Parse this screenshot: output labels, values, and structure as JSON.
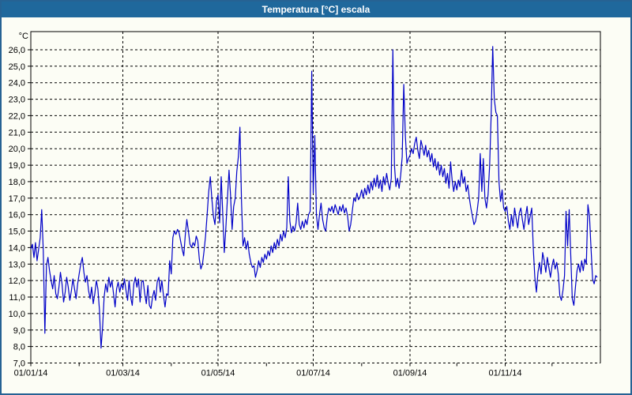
{
  "window": {
    "title": "Temperatura [°C] escala",
    "titlebar_color": "#1f689c",
    "border_color": "#266293",
    "background_color": "#fcfdf5"
  },
  "chart_data": {
    "type": "line",
    "title": "Temperatura [°C] escala",
    "xlabel": "",
    "ylabel": "°C",
    "legend": "none",
    "grid": "dashed",
    "line_color": "#0000c8",
    "ylim": [
      7.0,
      27.1
    ],
    "xlim": [
      0,
      365
    ],
    "y_ticks": [
      {
        "value": 26,
        "label": "26,0"
      },
      {
        "value": 25,
        "label": "25,0"
      },
      {
        "value": 24,
        "label": "24,0"
      },
      {
        "value": 23,
        "label": "23,0"
      },
      {
        "value": 22,
        "label": "22,0"
      },
      {
        "value": 21,
        "label": "21,0"
      },
      {
        "value": 20,
        "label": "20,0"
      },
      {
        "value": 19,
        "label": "19,0"
      },
      {
        "value": 18,
        "label": "18,0"
      },
      {
        "value": 17,
        "label": "17,0"
      },
      {
        "value": 16,
        "label": "16,0"
      },
      {
        "value": 15,
        "label": "15,0"
      },
      {
        "value": 14,
        "label": "14,0"
      },
      {
        "value": 13,
        "label": "13,0"
      },
      {
        "value": 12,
        "label": "12,0"
      },
      {
        "value": 11,
        "label": "11,0"
      },
      {
        "value": 10,
        "label": "10,0"
      },
      {
        "value": 9,
        "label": "9,0"
      },
      {
        "value": 8,
        "label": "8,0"
      },
      {
        "value": 7,
        "label": "7,0"
      }
    ],
    "x_ticks": [
      {
        "day": 0,
        "label": "01/01/14"
      },
      {
        "day": 59,
        "label": "01/03/14"
      },
      {
        "day": 120,
        "label": "01/05/14"
      },
      {
        "day": 181,
        "label": "01/07/14"
      },
      {
        "day": 243,
        "label": "01/09/14"
      },
      {
        "day": 304,
        "label": "01/11/14"
      }
    ],
    "x_minor_tick_days": [
      0,
      31,
      59,
      90,
      120,
      151,
      181,
      212,
      243,
      273,
      304,
      334
    ],
    "series": [
      {
        "name": "Temperatura",
        "start_day": 0,
        "step_days": 1,
        "values": [
          13.9,
          14.2,
          13.4,
          14.3,
          13.2,
          13.9,
          14.6,
          16.3,
          13.8,
          8.8,
          12.9,
          13.4,
          12.6,
          12.0,
          11.5,
          12.3,
          11.2,
          10.9,
          11.6,
          12.5,
          11.8,
          10.7,
          11.3,
          12.2,
          11.6,
          10.8,
          11.4,
          12.1,
          11.5,
          10.9,
          11.8,
          12.4,
          13.0,
          13.4,
          12.5,
          11.9,
          12.3,
          11.4,
          10.9,
          11.6,
          10.6,
          11.2,
          12.0,
          11.5,
          10.2,
          7.9,
          9.2,
          11.0,
          11.8,
          11.3,
          12.2,
          11.6,
          12.0,
          11.2,
          10.4,
          11.5,
          11.9,
          11.3,
          11.8,
          11.5,
          12.1,
          11.4,
          10.8,
          12.0,
          11.0,
          10.5,
          11.8,
          12.2,
          11.6,
          12.1,
          10.7,
          11.9,
          12.0,
          11.2,
          10.6,
          11.7,
          10.5,
          10.3,
          11.0,
          11.4,
          10.8,
          11.9,
          12.2,
          11.3,
          12.0,
          11.1,
          10.4,
          11.2,
          11.1,
          13.2,
          12.4,
          14.6,
          15.0,
          14.8,
          15.1,
          14.9,
          14.4,
          13.9,
          13.5,
          14.8,
          15.7,
          15.0,
          14.2,
          14.0,
          14.3,
          14.1,
          14.7,
          14.4,
          13.3,
          12.7,
          13.0,
          13.8,
          14.7,
          16.0,
          17.4,
          18.3,
          17.0,
          15.9,
          15.4,
          16.8,
          17.2,
          15.5,
          18.3,
          16.0,
          13.7,
          15.2,
          17.0,
          18.7,
          17.2,
          15.1,
          16.5,
          17.0,
          18.6,
          19.5,
          21.3,
          16.8,
          14.1,
          14.6,
          13.9,
          14.4,
          13.6,
          13.1,
          12.8,
          12.9,
          12.2,
          12.6,
          13.2,
          12.8,
          13.4,
          13.1,
          13.6,
          13.3,
          13.8,
          13.5,
          14.1,
          13.7,
          14.3,
          13.9,
          14.5,
          14.1,
          14.8,
          14.4,
          15.0,
          14.6,
          15.2,
          18.3,
          15.6,
          14.9,
          15.3,
          15.0,
          15.5,
          16.7,
          15.4,
          15.1,
          15.6,
          15.2,
          15.7,
          15.4,
          16.0,
          16.2,
          24.7,
          17.3,
          20.8,
          16.0,
          15.1,
          16.0,
          16.7,
          15.7,
          15.2,
          15.0,
          15.9,
          16.4,
          16.2,
          16.5,
          16.1,
          16.6,
          16.3,
          16.0,
          16.5,
          16.2,
          16.6,
          16.1,
          16.4,
          15.9,
          15.0,
          15.4,
          16.2,
          17.0,
          16.8,
          17.3,
          16.9,
          17.1,
          17.5,
          17.0,
          17.6,
          17.2,
          17.8,
          17.3,
          18.0,
          17.5,
          18.2,
          17.7,
          18.4,
          17.6,
          18.1,
          17.4,
          18.3,
          17.8,
          18.5,
          17.9,
          17.5,
          18.2,
          26.0,
          19.0,
          17.7,
          18.2,
          17.6,
          18.4,
          19.5,
          23.9,
          20.8,
          19.1,
          19.4,
          19.6,
          20.0,
          19.7,
          20.3,
          20.7,
          19.9,
          19.4,
          20.5,
          20.1,
          19.6,
          20.2,
          19.5,
          19.9,
          19.2,
          19.7,
          18.9,
          19.4,
          18.7,
          19.2,
          18.4,
          19.0,
          18.3,
          18.8,
          17.9,
          18.5,
          17.6,
          19.2,
          18.1,
          17.4,
          18.0,
          17.5,
          18.1,
          17.7,
          18.7,
          17.9,
          18.3,
          17.4,
          17.8,
          17.0,
          16.4,
          15.9,
          15.4,
          15.6,
          16.2,
          17.0,
          19.7,
          17.4,
          19.4,
          17.0,
          16.4,
          17.2,
          19.0,
          22.0,
          26.2,
          23.0,
          22.2,
          22.0,
          18.0,
          16.8,
          17.5,
          16.4,
          16.2,
          16.5,
          15.6,
          15.1,
          16.0,
          15.3,
          16.4,
          15.8,
          15.2,
          16.1,
          16.4,
          15.7,
          15.1,
          15.9,
          16.5,
          15.4,
          15.9,
          16.4,
          13.9,
          12.2,
          11.3,
          12.5,
          13.1,
          12.4,
          13.7,
          13.2,
          12.5,
          13.4,
          12.8,
          12.2,
          12.9,
          13.3,
          12.7,
          13.1,
          12.4,
          11.1,
          10.8,
          11.4,
          12.3,
          16.2,
          14.1,
          16.3,
          13.5,
          10.9,
          10.5,
          11.6,
          12.6,
          13.0,
          12.5,
          13.2,
          12.6,
          13.3,
          13.0,
          16.6,
          15.9,
          14.0,
          12.1,
          11.8,
          12.3,
          12.2
        ]
      }
    ]
  }
}
